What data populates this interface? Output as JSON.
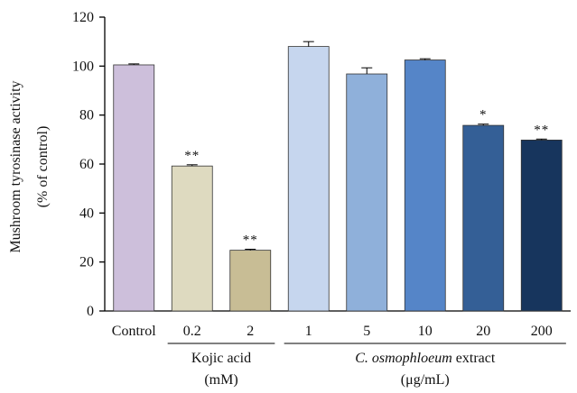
{
  "chart_data": {
    "type": "bar",
    "ylabel_lines": [
      "Mushroom tyrosinase activity",
      "(% of control)"
    ],
    "ylim": [
      0,
      120
    ],
    "yticks": [
      0,
      20,
      40,
      60,
      80,
      100,
      120
    ],
    "grid": false,
    "categories": [
      "Control",
      "0.2",
      "2",
      "1",
      "5",
      "10",
      "20",
      "200"
    ],
    "values": [
      100.5,
      59.2,
      24.8,
      108.0,
      96.8,
      102.5,
      75.8,
      69.8
    ],
    "errors": [
      0.4,
      0.5,
      0.4,
      2.0,
      2.5,
      0.5,
      0.5,
      0.4
    ],
    "significance": [
      "",
      "**",
      "**",
      "",
      "",
      "",
      "*",
      "**"
    ],
    "colors": [
      "#cdbfdb",
      "#dedac0",
      "#c8bd95",
      "#c6d6ee",
      "#8fb0da",
      "#5585c8",
      "#345f96",
      "#17355d"
    ],
    "groups": [
      {
        "lines": [
          "Kojic acid",
          "(mM)"
        ],
        "from": 1,
        "to": 2
      },
      {
        "lines": [
          "C. osmophloeum extract",
          "(μg/mL)"
        ],
        "from": 3,
        "to": 7
      }
    ]
  }
}
